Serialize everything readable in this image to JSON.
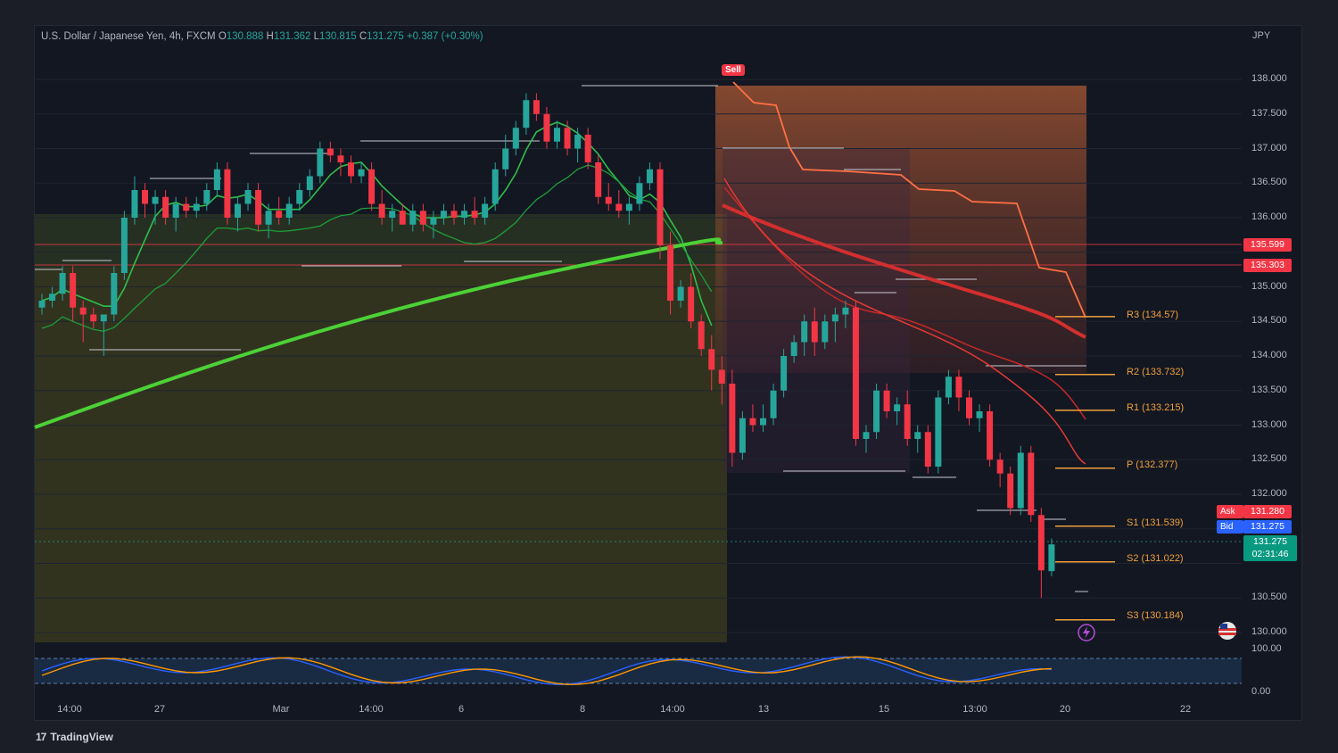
{
  "header": {
    "symbol": "U.S. Dollar / Japanese Yen, 4h, FXCM",
    "o_label": "O",
    "o": "130.888",
    "h_label": "H",
    "h": "131.362",
    "l_label": "L",
    "l": "130.815",
    "c_label": "C",
    "c": "131.275",
    "change": "+0.387 (+0.30%)"
  },
  "currency": "JPY",
  "sell_label": "Sell",
  "price_scale": [
    "138.000",
    "137.500",
    "137.000",
    "136.500",
    "136.000",
    "135.000",
    "134.500",
    "134.000",
    "133.500",
    "133.000",
    "132.500",
    "132.000",
    "130.500",
    "130.000"
  ],
  "osc_scale": [
    "100.00",
    "0.00"
  ],
  "time_labels": [
    "14:00",
    "27",
    "Mar",
    "14:00",
    "6",
    "8",
    "14:00",
    "13",
    "15",
    "13:00",
    "20",
    "22"
  ],
  "levels": {
    "r3": "R3 (134.57)",
    "r2": "R2 (133.732)",
    "r1": "R1 (133.215)",
    "p": "P (132.377)",
    "s1": "S1 (131.539)",
    "s2": "S2 (131.022)",
    "s3": "S3 (130.184)"
  },
  "level_values": {
    "r3": 134.57,
    "r2": 133.732,
    "r1": 133.215,
    "p": 132.377,
    "s1": 131.539,
    "s2": 131.022,
    "s3": 130.184
  },
  "price_tags": {
    "line1": "135.599",
    "line2": "135.303",
    "ask_label": "Ask",
    "ask": "131.280",
    "bid_label": "Bid",
    "bid": "131.275",
    "last": "131.275",
    "countdown": "02:31:46"
  },
  "brand": "TradingView",
  "colors": {
    "up": "#26a69a",
    "down": "#f23645",
    "pivot": "#f0a03c",
    "ema_green": "#39d353",
    "ema_red": "#e0302b",
    "band": "#ff7043"
  },
  "chart_data": {
    "type": "candlestick",
    "ylim": [
      129.9,
      138.4
    ],
    "ohlc": [
      [
        134.7,
        134.9,
        134.6,
        134.8
      ],
      [
        134.8,
        135.0,
        134.7,
        134.9
      ],
      [
        134.9,
        135.3,
        134.8,
        135.2
      ],
      [
        135.2,
        135.3,
        134.5,
        134.7
      ],
      [
        134.7,
        134.8,
        134.2,
        134.6
      ],
      [
        134.6,
        134.7,
        134.4,
        134.5
      ],
      [
        134.5,
        134.6,
        134.0,
        134.6
      ],
      [
        134.6,
        135.3,
        134.5,
        135.2
      ],
      [
        135.2,
        136.1,
        135.1,
        136.0
      ],
      [
        136.0,
        136.6,
        135.9,
        136.4
      ],
      [
        136.4,
        136.5,
        136.0,
        136.2
      ],
      [
        136.2,
        136.4,
        135.9,
        136.3
      ],
      [
        136.3,
        136.4,
        135.9,
        136.0
      ],
      [
        136.0,
        136.3,
        135.8,
        136.2
      ],
      [
        136.2,
        136.3,
        136.0,
        136.1
      ],
      [
        136.1,
        136.3,
        136.0,
        136.2
      ],
      [
        136.2,
        136.5,
        136.1,
        136.4
      ],
      [
        136.4,
        136.8,
        136.3,
        136.7
      ],
      [
        136.7,
        136.8,
        135.9,
        136.0
      ],
      [
        136.0,
        136.3,
        135.8,
        136.2
      ],
      [
        136.2,
        136.5,
        136.1,
        136.4
      ],
      [
        136.4,
        136.5,
        135.8,
        135.9
      ],
      [
        135.9,
        136.2,
        135.7,
        136.1
      ],
      [
        136.1,
        136.3,
        135.9,
        136.0
      ],
      [
        136.0,
        136.3,
        135.9,
        136.2
      ],
      [
        136.2,
        136.5,
        136.1,
        136.4
      ],
      [
        136.4,
        136.7,
        136.3,
        136.6
      ],
      [
        136.6,
        137.1,
        136.5,
        137.0
      ],
      [
        137.0,
        137.1,
        136.8,
        136.9
      ],
      [
        136.9,
        137.0,
        136.6,
        136.8
      ],
      [
        136.8,
        136.9,
        136.5,
        136.6
      ],
      [
        136.6,
        136.8,
        136.5,
        136.7
      ],
      [
        136.7,
        136.8,
        136.1,
        136.2
      ],
      [
        136.2,
        136.4,
        135.9,
        136.0
      ],
      [
        136.0,
        136.2,
        135.8,
        136.1
      ],
      [
        136.1,
        136.2,
        135.9,
        135.9
      ],
      [
        135.9,
        136.2,
        135.8,
        136.1
      ],
      [
        136.1,
        136.2,
        135.8,
        135.9
      ],
      [
        135.9,
        136.1,
        135.7,
        136.0
      ],
      [
        136.0,
        136.2,
        135.9,
        136.1
      ],
      [
        136.1,
        136.2,
        135.9,
        136.0
      ],
      [
        136.0,
        136.2,
        135.9,
        136.1
      ],
      [
        136.1,
        136.3,
        135.9,
        136.0
      ],
      [
        136.0,
        136.3,
        135.9,
        136.2
      ],
      [
        136.2,
        136.8,
        136.1,
        136.7
      ],
      [
        136.7,
        137.2,
        136.6,
        137.0
      ],
      [
        137.0,
        137.4,
        136.9,
        137.3
      ],
      [
        137.3,
        137.8,
        137.2,
        137.7
      ],
      [
        137.7,
        137.8,
        137.4,
        137.5
      ],
      [
        137.5,
        137.6,
        137.0,
        137.1
      ],
      [
        137.1,
        137.4,
        137.0,
        137.3
      ],
      [
        137.3,
        137.4,
        136.9,
        137.0
      ],
      [
        137.0,
        137.3,
        136.8,
        137.2
      ],
      [
        137.2,
        137.3,
        136.7,
        136.8
      ],
      [
        136.8,
        136.9,
        136.2,
        136.3
      ],
      [
        136.3,
        136.5,
        136.1,
        136.2
      ],
      [
        136.2,
        136.4,
        136.0,
        136.1
      ],
      [
        136.1,
        136.3,
        135.9,
        136.2
      ],
      [
        136.2,
        136.6,
        136.1,
        136.5
      ],
      [
        136.5,
        136.8,
        136.4,
        136.7
      ],
      [
        136.7,
        136.8,
        135.4,
        135.6
      ],
      [
        135.6,
        135.8,
        134.6,
        134.8
      ],
      [
        134.8,
        135.1,
        134.7,
        135.0
      ],
      [
        135.0,
        135.2,
        134.4,
        134.5
      ],
      [
        134.5,
        134.6,
        134.0,
        134.1
      ],
      [
        134.1,
        134.3,
        133.5,
        133.8
      ],
      [
        133.8,
        134.0,
        133.3,
        133.6
      ],
      [
        133.6,
        133.8,
        132.4,
        132.6
      ],
      [
        132.6,
        133.2,
        132.5,
        133.1
      ],
      [
        133.1,
        133.3,
        132.9,
        133.0
      ],
      [
        133.0,
        133.3,
        132.9,
        133.1
      ],
      [
        133.1,
        133.6,
        133.0,
        133.5
      ],
      [
        133.5,
        134.1,
        133.4,
        134.0
      ],
      [
        134.0,
        134.3,
        133.9,
        134.2
      ],
      [
        134.2,
        134.6,
        134.0,
        134.5
      ],
      [
        134.5,
        134.7,
        134.0,
        134.2
      ],
      [
        134.2,
        134.6,
        134.1,
        134.5
      ],
      [
        134.5,
        134.7,
        134.2,
        134.6
      ],
      [
        134.6,
        134.8,
        134.4,
        134.7
      ],
      [
        134.7,
        134.8,
        132.7,
        132.8
      ],
      [
        132.8,
        133.0,
        132.6,
        132.9
      ],
      [
        132.9,
        133.6,
        132.8,
        133.5
      ],
      [
        133.5,
        133.6,
        133.1,
        133.2
      ],
      [
        133.2,
        133.4,
        133.0,
        133.3
      ],
      [
        133.3,
        133.5,
        132.7,
        132.8
      ],
      [
        132.8,
        133.0,
        132.6,
        132.9
      ],
      [
        132.9,
        133.0,
        132.3,
        132.4
      ],
      [
        132.4,
        133.5,
        132.3,
        133.4
      ],
      [
        133.4,
        133.8,
        133.3,
        133.7
      ],
      [
        133.7,
        133.8,
        133.2,
        133.4
      ],
      [
        133.4,
        133.5,
        133.0,
        133.1
      ],
      [
        133.1,
        133.3,
        132.9,
        133.2
      ],
      [
        133.2,
        133.3,
        132.4,
        132.5
      ],
      [
        132.5,
        132.6,
        132.1,
        132.3
      ],
      [
        132.3,
        132.4,
        131.7,
        131.8
      ],
      [
        131.8,
        132.7,
        131.7,
        132.6
      ],
      [
        132.6,
        132.7,
        131.6,
        131.7
      ],
      [
        131.7,
        131.8,
        130.5,
        130.9
      ],
      [
        130.888,
        131.362,
        130.815,
        131.275
      ]
    ]
  }
}
